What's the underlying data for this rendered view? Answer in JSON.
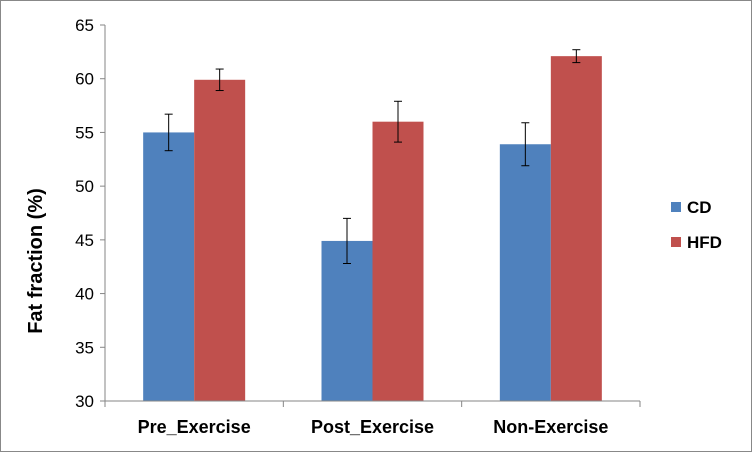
{
  "chart_data": {
    "type": "bar",
    "title": "",
    "xlabel": "",
    "ylabel": "Fat fraction (%)",
    "ylim": [
      30,
      65
    ],
    "yticks": [
      30,
      35,
      40,
      45,
      50,
      55,
      60,
      65
    ],
    "grid": false,
    "legend_position": "right",
    "categories": [
      "Pre_Exercise",
      "Post_Exercise",
      "Non-Exercise"
    ],
    "series": [
      {
        "name": "CD",
        "color": "#4F81BD",
        "values": [
          55.0,
          44.9,
          53.9
        ],
        "errors": [
          1.7,
          2.1,
          2.0
        ]
      },
      {
        "name": "HFD",
        "color": "#C0504D",
        "values": [
          59.9,
          56.0,
          62.1
        ],
        "errors": [
          1.0,
          1.9,
          0.6
        ]
      }
    ]
  }
}
